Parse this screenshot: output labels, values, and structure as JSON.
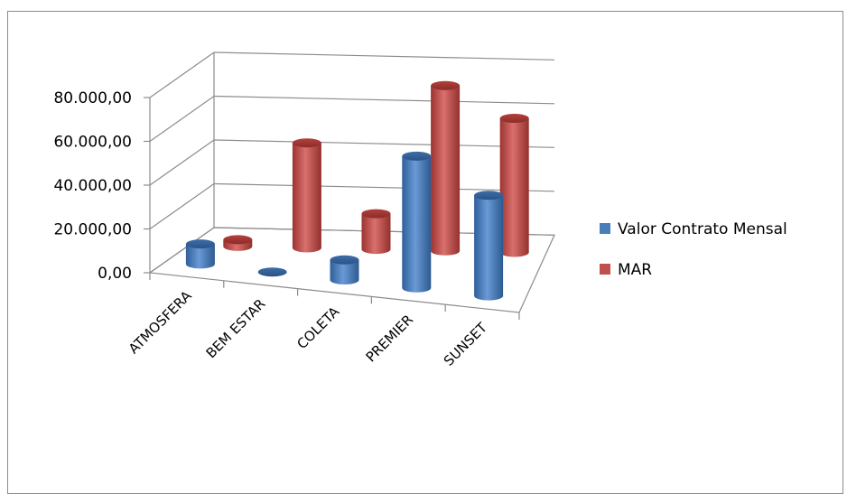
{
  "chart_data": {
    "type": "bar",
    "style": "3d-cylinder",
    "categories": [
      "ATMOSFERA",
      "BEM ESTAR",
      "COLETA",
      "PREMIER",
      "SUNSET"
    ],
    "series": [
      {
        "name": "Valor Contrato Mensal",
        "color": "#4a7ebb",
        "values": [
          9000,
          0,
          9000,
          59000,
          45000
        ]
      },
      {
        "name": "MAR",
        "color": "#c0504d",
        "values": [
          3000,
          47000,
          16000,
          74000,
          60000
        ]
      }
    ],
    "y_ticks": [
      "0,00",
      "20.000,00",
      "40.000,00",
      "60.000,00",
      "80.000,00"
    ],
    "ylim": [
      0,
      80000
    ],
    "grid": true,
    "legend": "right"
  }
}
